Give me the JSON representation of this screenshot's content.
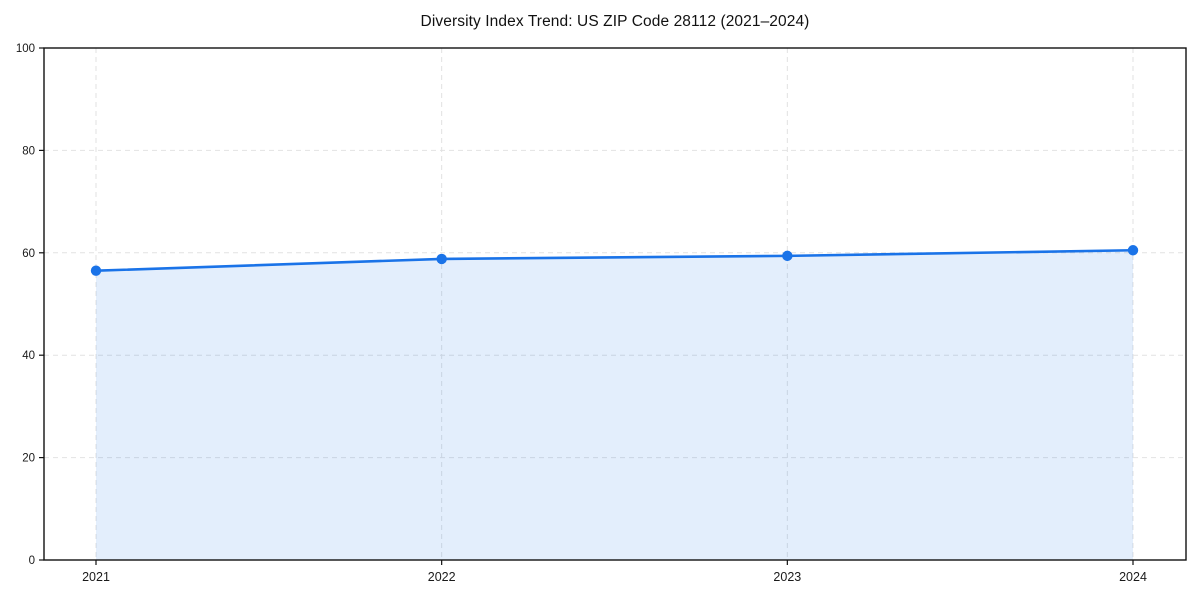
{
  "title": "Diversity Index Trend: US ZIP Code 28112 (2021–2024)",
  "chart_data": {
    "type": "area",
    "title": "Diversity Index Trend: US ZIP Code 28112 (2021–2024)",
    "x": [
      "2021",
      "2022",
      "2023",
      "2024"
    ],
    "series": [
      {
        "name": "Diversity Index",
        "values": [
          56.5,
          58.8,
          59.4,
          60.5
        ]
      }
    ],
    "xlabel": "",
    "ylabel": "",
    "ylim": [
      0,
      100
    ],
    "yticks": [
      0,
      20,
      40,
      60,
      80,
      100
    ],
    "grid": true,
    "grid_style": "dashed",
    "legend_position": "none",
    "colors": {
      "line": "#1a73e8",
      "marker": "#1a73e8",
      "fill": "rgba(26,115,232,0.12)",
      "grid": "#e2e2e2",
      "spine": "#111111",
      "tick_text": "#1a1a1a",
      "background": "#ffffff"
    }
  }
}
